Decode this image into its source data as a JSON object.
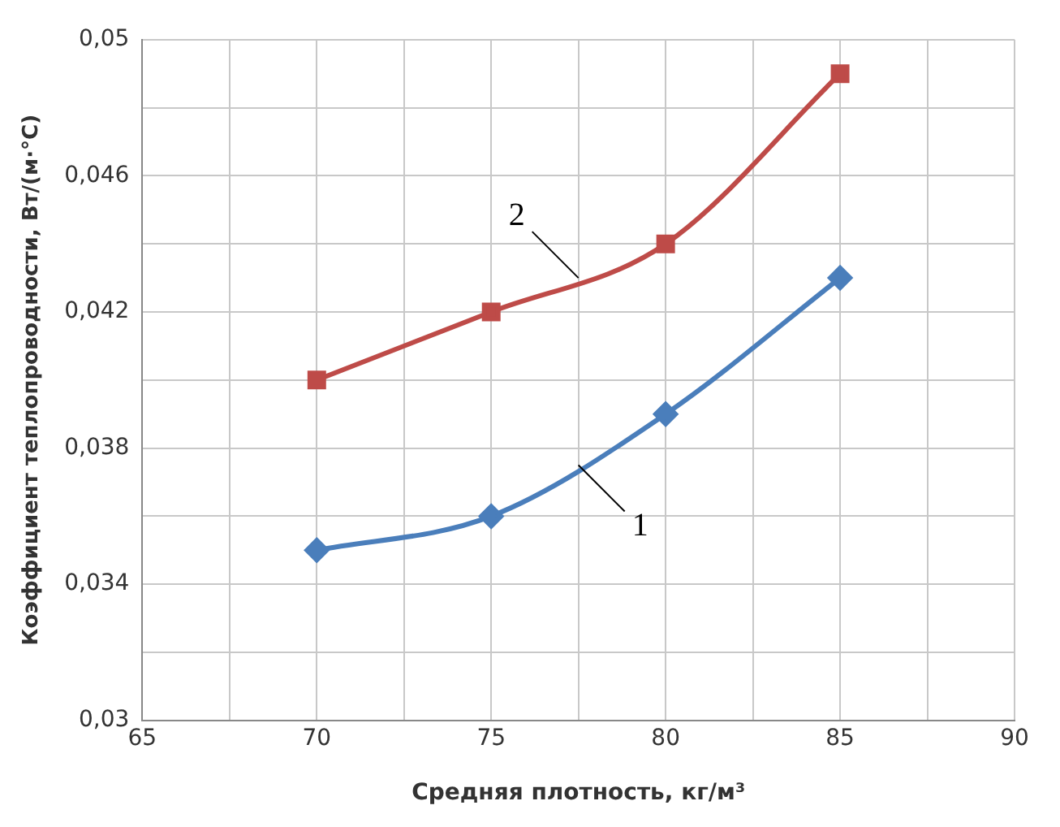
{
  "chart_data": {
    "type": "line",
    "xlabel": "Средняя плотность, кг/м³",
    "ylabel": "Коэффициент теплопроводности, Вт/(м·°С)",
    "x": [
      70,
      75,
      80,
      85
    ],
    "series": [
      {
        "name": "1",
        "color": "#4a7ebb",
        "values": [
          0.035,
          0.036,
          0.039,
          0.043
        ],
        "marker": "diamond"
      },
      {
        "name": "2",
        "color": "#be4b48",
        "values": [
          0.04,
          0.042,
          0.044,
          0.049
        ],
        "marker": "square"
      }
    ],
    "xlim": [
      65,
      90
    ],
    "xticks": [
      65,
      {
        "value": 67.5,
        "label": null
      },
      70,
      {
        "value": 72.5,
        "label": null
      },
      75,
      {
        "value": 77.5,
        "label": null
      },
      80,
      {
        "value": 82.5,
        "label": null
      },
      85,
      {
        "value": 87.5,
        "label": null
      },
      90
    ],
    "ylim": [
      0.03,
      0.05
    ],
    "yticks": [
      {
        "value": 0.03,
        "label": "0,03"
      },
      {
        "value": 0.032,
        "label": null
      },
      {
        "value": 0.034,
        "label": "0,034"
      },
      {
        "value": 0.036,
        "label": null
      },
      {
        "value": 0.038,
        "label": "0,038"
      },
      {
        "value": 0.04,
        "label": null
      },
      {
        "value": 0.042,
        "label": "0,042"
      },
      {
        "value": 0.044,
        "label": null
      },
      {
        "value": 0.046,
        "label": "0,046"
      },
      {
        "value": 0.048,
        "label": null
      },
      {
        "value": 0.05,
        "label": "0,05"
      }
    ],
    "grid": true,
    "legend": false,
    "line_style": "solid"
  }
}
